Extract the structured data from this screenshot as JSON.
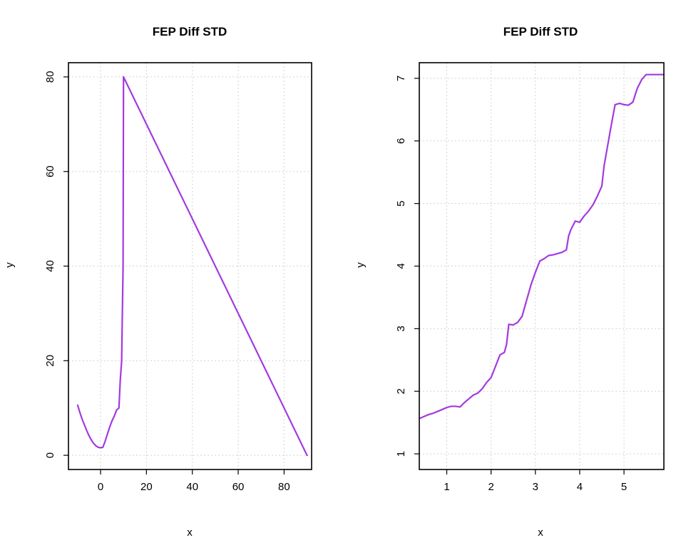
{
  "chart_data": [
    {
      "type": "line",
      "title": "FEP Diff STD",
      "xlabel": "x",
      "ylabel": "y",
      "xlim": [
        -14,
        92
      ],
      "ylim": [
        -3,
        83
      ],
      "xticks": [
        0,
        20,
        40,
        60,
        80
      ],
      "yticks": [
        0,
        20,
        40,
        60,
        80
      ],
      "grid": true,
      "color": "#a33ae0",
      "series": [
        {
          "x": [
            -10,
            -9,
            -8,
            -7,
            -6,
            -5,
            -4,
            -3,
            -2,
            -1,
            0,
            1,
            2,
            3,
            4,
            5,
            6,
            7,
            8,
            8.6,
            9.2,
            9.8,
            10,
            90
          ],
          "y": [
            10.6,
            9,
            7.6,
            6.4,
            5.2,
            4.1,
            3.2,
            2.5,
            2,
            1.7,
            1.6,
            1.7,
            3,
            4.5,
            6,
            7.3,
            8.3,
            9.6,
            10,
            16,
            20,
            40,
            80,
            0
          ]
        }
      ]
    },
    {
      "type": "line",
      "title": "FEP Diff STD",
      "xlabel": "x",
      "ylabel": "y",
      "xlim": [
        0.38,
        5.9
      ],
      "ylim": [
        0.75,
        7.25
      ],
      "xticks": [
        1,
        2,
        3,
        4,
        5
      ],
      "yticks": [
        1,
        2,
        3,
        4,
        5,
        6,
        7
      ],
      "grid": true,
      "color": "#a33ae0",
      "series": [
        {
          "x": [
            0.4,
            0.5,
            0.6,
            0.7,
            0.8,
            0.9,
            1.0,
            1.1,
            1.2,
            1.3,
            1.4,
            1.5,
            1.6,
            1.7,
            1.8,
            1.9,
            2.0,
            2.1,
            2.2,
            2.3,
            2.35,
            2.4,
            2.5,
            2.6,
            2.7,
            2.8,
            2.9,
            3.0,
            3.1,
            3.2,
            3.3,
            3.4,
            3.5,
            3.6,
            3.7,
            3.75,
            3.8,
            3.9,
            4.0,
            4.1,
            4.2,
            4.3,
            4.4,
            4.5,
            4.55,
            4.6,
            4.7,
            4.8,
            4.9,
            5.0,
            5.1,
            5.2,
            5.3,
            5.4,
            5.5,
            5.6,
            5.7,
            5.9
          ],
          "y": [
            1.57,
            1.6,
            1.63,
            1.65,
            1.68,
            1.71,
            1.74,
            1.76,
            1.76,
            1.75,
            1.82,
            1.88,
            1.94,
            1.97,
            2.04,
            2.14,
            2.22,
            2.4,
            2.58,
            2.62,
            2.75,
            3.07,
            3.06,
            3.1,
            3.2,
            3.45,
            3.7,
            3.9,
            4.08,
            4.12,
            4.17,
            4.18,
            4.2,
            4.22,
            4.26,
            4.48,
            4.58,
            4.72,
            4.7,
            4.8,
            4.88,
            4.98,
            5.12,
            5.28,
            5.6,
            5.8,
            6.2,
            6.58,
            6.6,
            6.58,
            6.57,
            6.62,
            6.84,
            6.98,
            7.06,
            7.06,
            7.06,
            7.06
          ]
        }
      ]
    }
  ]
}
